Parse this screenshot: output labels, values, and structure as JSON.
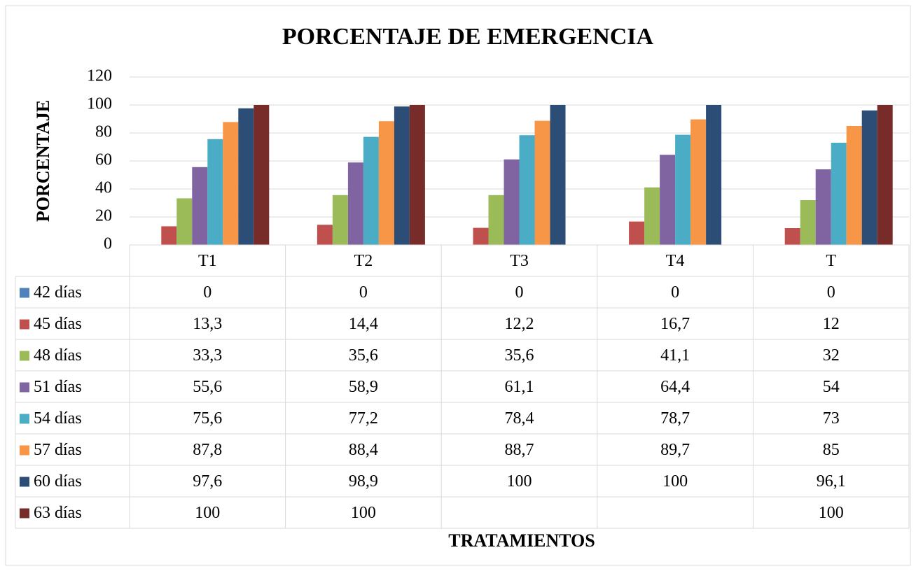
{
  "chart_data": {
    "type": "bar",
    "title": "PORCENTAJE DE EMERGENCIA",
    "y_label": "PORCENTAJE",
    "x_label": "TRATAMIENTOS",
    "categories": [
      "T1",
      "T2",
      "T3",
      "T4",
      "T"
    ],
    "ylim": [
      0,
      120
    ],
    "yticks": [
      0,
      20,
      40,
      60,
      80,
      100,
      120
    ],
    "grid": true,
    "series": [
      {
        "name": "42 días",
        "color": "#4f81bd",
        "values": [
          0,
          0,
          0,
          0,
          0
        ],
        "value_labels": [
          "0",
          "0",
          "0",
          "0",
          "0"
        ]
      },
      {
        "name": "45 días",
        "color": "#c0504d",
        "values": [
          13.3,
          14.4,
          12.2,
          16.7,
          12
        ],
        "value_labels": [
          "13,3",
          "14,4",
          "12,2",
          "16,7",
          "12"
        ]
      },
      {
        "name": "48 días",
        "color": "#9bbb59",
        "values": [
          33.3,
          35.6,
          35.6,
          41.1,
          32
        ],
        "value_labels": [
          "33,3",
          "35,6",
          "35,6",
          "41,1",
          "32"
        ]
      },
      {
        "name": "51 días",
        "color": "#8064a2",
        "values": [
          55.6,
          58.9,
          61.1,
          64.4,
          54
        ],
        "value_labels": [
          "55,6",
          "58,9",
          "61,1",
          "64,4",
          "54"
        ]
      },
      {
        "name": "54 días",
        "color": "#4bacc6",
        "values": [
          75.6,
          77.2,
          78.4,
          78.7,
          73
        ],
        "value_labels": [
          "75,6",
          "77,2",
          "78,4",
          "78,7",
          "73"
        ]
      },
      {
        "name": "57 días",
        "color": "#f79646",
        "values": [
          87.8,
          88.4,
          88.7,
          89.7,
          85
        ],
        "value_labels": [
          "87,8",
          "88,4",
          "88,7",
          "89,7",
          "85"
        ]
      },
      {
        "name": "60 días",
        "color": "#2c4d75",
        "values": [
          97.6,
          98.9,
          100,
          100,
          96.1
        ],
        "value_labels": [
          "97,6",
          "98,9",
          "100",
          "100",
          "96,1"
        ]
      },
      {
        "name": "63 días",
        "color": "#772c2a",
        "values": [
          100,
          100,
          null,
          null,
          100
        ],
        "value_labels": [
          "100",
          "100",
          null,
          null,
          "100"
        ]
      }
    ]
  }
}
